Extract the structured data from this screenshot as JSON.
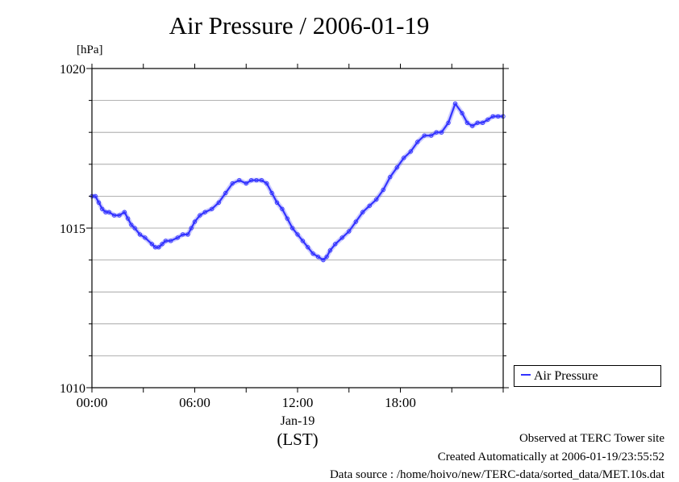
{
  "chart_data": {
    "type": "line",
    "title": "Air Pressure / 2006-01-19",
    "ylabel": "[hPa]",
    "ylim": [
      1010,
      1020
    ],
    "yticks": [
      "1010",
      "1015",
      "1020"
    ],
    "xlim": [
      0,
      24
    ],
    "xticks": [
      {
        "value": 0,
        "label": "00:00"
      },
      {
        "value": 6,
        "label": "06:00"
      },
      {
        "value": 12,
        "label": "12:00"
      },
      {
        "value": 18,
        "label": "18:00"
      }
    ],
    "xdate_label": "Jan-19",
    "xlabel": "(LST)",
    "grid": true,
    "legend_position": "right",
    "series": [
      {
        "name": "Air Pressure",
        "color": "#3333ff",
        "x": [
          0,
          0.2,
          0.4,
          0.6,
          0.8,
          1.0,
          1.3,
          1.6,
          1.9,
          2.1,
          2.3,
          2.5,
          2.8,
          3.1,
          3.5,
          3.7,
          3.9,
          4.1,
          4.3,
          4.6,
          5.0,
          5.3,
          5.6,
          5.8,
          6.0,
          6.3,
          6.6,
          7.0,
          7.4,
          7.8,
          8.2,
          8.6,
          9.0,
          9.3,
          9.6,
          9.9,
          10.2,
          10.5,
          10.8,
          11.1,
          11.4,
          11.7,
          12.0,
          12.3,
          12.6,
          12.9,
          13.2,
          13.5,
          13.7,
          13.9,
          14.2,
          14.6,
          15.0,
          15.4,
          15.8,
          16.2,
          16.6,
          17.0,
          17.4,
          17.8,
          18.2,
          18.6,
          19.0,
          19.4,
          19.8,
          20.1,
          20.4,
          20.8,
          21.2,
          21.6,
          21.9,
          22.2,
          22.5,
          22.8,
          23.1,
          23.4,
          23.7,
          24.0
        ],
        "values": [
          1016.0,
          1016.0,
          1015.8,
          1015.6,
          1015.5,
          1015.5,
          1015.4,
          1015.4,
          1015.5,
          1015.3,
          1015.1,
          1015.0,
          1014.8,
          1014.7,
          1014.5,
          1014.4,
          1014.4,
          1014.5,
          1014.6,
          1014.6,
          1014.7,
          1014.8,
          1014.8,
          1015.0,
          1015.2,
          1015.4,
          1015.5,
          1015.6,
          1015.8,
          1016.1,
          1016.4,
          1016.5,
          1016.4,
          1016.5,
          1016.5,
          1016.5,
          1016.4,
          1016.1,
          1015.8,
          1015.6,
          1015.3,
          1015.0,
          1014.8,
          1014.6,
          1014.4,
          1014.2,
          1014.1,
          1014.0,
          1014.1,
          1014.3,
          1014.5,
          1014.7,
          1014.9,
          1015.2,
          1015.5,
          1015.7,
          1015.9,
          1016.2,
          1016.6,
          1016.9,
          1017.2,
          1017.4,
          1017.7,
          1017.9,
          1017.9,
          1018.0,
          1018.0,
          1018.3,
          1018.9,
          1018.6,
          1018.3,
          1018.2,
          1018.3,
          1018.3,
          1018.4,
          1018.5,
          1018.5,
          1018.5
        ]
      }
    ]
  },
  "footer": {
    "observed": "Observed at TERC Tower site",
    "created": "Created Automatically at 2006-01-19/23:55:52",
    "source": "Data source : /home/hoivo/new/TERC-data/sorted_data/MET.10s.dat"
  }
}
